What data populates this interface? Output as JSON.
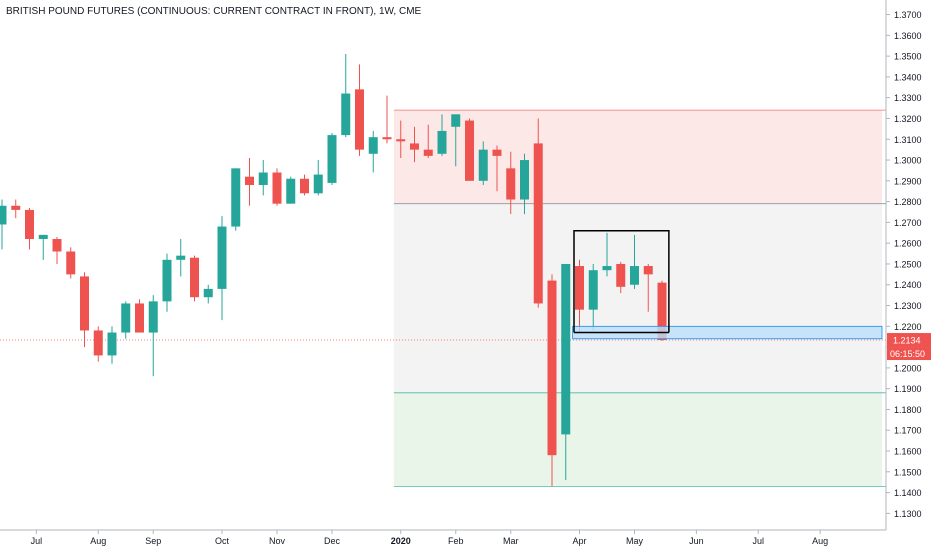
{
  "colors": {
    "up": "#26a69a",
    "down": "#ef5350",
    "axis_text": "#131722",
    "axis_line": "#b2b5be",
    "price_badge": "#ef5350",
    "price_line": "#ef5350",
    "short_zone": "#fde8e8",
    "long_zone": "#eaf5ea",
    "middle_zone": "#f3f3f3",
    "highlight_zone": "#bbdefb",
    "highlight_border": "#1e88e5",
    "box_line": "#000000"
  },
  "chart_data": {
    "type": "candlestick",
    "title": "BRITISH POUND FUTURES (CONTINUOUS: CURRENT CONTRACT IN FRONT), 1W, CME",
    "xlabel": "",
    "ylabel": "",
    "ylim": [
      1.122,
      1.377
    ],
    "y_ticks": [
      "1.3700",
      "1.3600",
      "1.3500",
      "1.3400",
      "1.3300",
      "1.3200",
      "1.3100",
      "1.3000",
      "1.2900",
      "1.2800",
      "1.2700",
      "1.2600",
      "1.2500",
      "1.2400",
      "1.2300",
      "1.2200",
      "1.2100",
      "1.2000",
      "1.1900",
      "1.1800",
      "1.1700",
      "1.1600",
      "1.1500",
      "1.1400",
      "1.1300"
    ],
    "x_ticks": [
      {
        "label": "Jul",
        "week": 2.5
      },
      {
        "label": "Aug",
        "week": 7
      },
      {
        "label": "Sep",
        "week": 11
      },
      {
        "label": "Oct",
        "week": 16
      },
      {
        "label": "Nov",
        "week": 20
      },
      {
        "label": "Dec",
        "week": 24
      },
      {
        "label": "2020",
        "week": 29
      },
      {
        "label": "Feb",
        "week": 33
      },
      {
        "label": "Mar",
        "week": 37
      },
      {
        "label": "Apr",
        "week": 42
      },
      {
        "label": "May",
        "week": 46
      },
      {
        "label": "Jun",
        "week": 50.5
      },
      {
        "label": "Jul",
        "week": 55
      },
      {
        "label": "Aug",
        "week": 59.5
      }
    ],
    "last_price": "1.2134",
    "countdown": "06:15:50",
    "candles": [
      {
        "o": 1.269,
        "h": 1.281,
        "l": 1.257,
        "c": 1.278
      },
      {
        "o": 1.278,
        "h": 1.281,
        "l": 1.272,
        "c": 1.276
      },
      {
        "o": 1.276,
        "h": 1.277,
        "l": 1.257,
        "c": 1.262
      },
      {
        "o": 1.262,
        "h": 1.264,
        "l": 1.252,
        "c": 1.264
      },
      {
        "o": 1.262,
        "h": 1.263,
        "l": 1.25,
        "c": 1.256
      },
      {
        "o": 1.256,
        "h": 1.258,
        "l": 1.243,
        "c": 1.245
      },
      {
        "o": 1.244,
        "h": 1.246,
        "l": 1.21,
        "c": 1.218
      },
      {
        "o": 1.218,
        "h": 1.22,
        "l": 1.203,
        "c": 1.206
      },
      {
        "o": 1.206,
        "h": 1.22,
        "l": 1.202,
        "c": 1.217
      },
      {
        "o": 1.217,
        "h": 1.232,
        "l": 1.214,
        "c": 1.231
      },
      {
        "o": 1.231,
        "h": 1.233,
        "l": 1.218,
        "c": 1.217
      },
      {
        "o": 1.217,
        "h": 1.235,
        "l": 1.196,
        "c": 1.232
      },
      {
        "o": 1.232,
        "h": 1.255,
        "l": 1.227,
        "c": 1.252
      },
      {
        "o": 1.252,
        "h": 1.262,
        "l": 1.244,
        "c": 1.254
      },
      {
        "o": 1.253,
        "h": 1.254,
        "l": 1.232,
        "c": 1.234
      },
      {
        "o": 1.234,
        "h": 1.24,
        "l": 1.231,
        "c": 1.238
      },
      {
        "o": 1.238,
        "h": 1.273,
        "l": 1.223,
        "c": 1.268
      },
      {
        "o": 1.268,
        "h": 1.296,
        "l": 1.266,
        "c": 1.296
      },
      {
        "o": 1.292,
        "h": 1.301,
        "l": 1.278,
        "c": 1.288
      },
      {
        "o": 1.288,
        "h": 1.3,
        "l": 1.283,
        "c": 1.294
      },
      {
        "o": 1.294,
        "h": 1.296,
        "l": 1.278,
        "c": 1.279
      },
      {
        "o": 1.279,
        "h": 1.292,
        "l": 1.279,
        "c": 1.291
      },
      {
        "o": 1.291,
        "h": 1.293,
        "l": 1.283,
        "c": 1.284
      },
      {
        "o": 1.284,
        "h": 1.3,
        "l": 1.283,
        "c": 1.293
      },
      {
        "o": 1.289,
        "h": 1.313,
        "l": 1.288,
        "c": 1.312
      },
      {
        "o": 1.312,
        "h": 1.351,
        "l": 1.311,
        "c": 1.332
      },
      {
        "o": 1.334,
        "h": 1.346,
        "l": 1.302,
        "c": 1.305
      },
      {
        "o": 1.303,
        "h": 1.314,
        "l": 1.294,
        "c": 1.311
      },
      {
        "o": 1.311,
        "h": 1.331,
        "l": 1.308,
        "c": 1.31
      },
      {
        "o": 1.31,
        "h": 1.319,
        "l": 1.301,
        "c": 1.309
      },
      {
        "o": 1.308,
        "h": 1.316,
        "l": 1.299,
        "c": 1.305
      },
      {
        "o": 1.305,
        "h": 1.317,
        "l": 1.301,
        "c": 1.302
      },
      {
        "o": 1.303,
        "h": 1.322,
        "l": 1.302,
        "c": 1.314
      },
      {
        "o": 1.316,
        "h": 1.322,
        "l": 1.297,
        "c": 1.322
      },
      {
        "o": 1.319,
        "h": 1.32,
        "l": 1.29,
        "c": 1.29
      },
      {
        "o": 1.29,
        "h": 1.309,
        "l": 1.288,
        "c": 1.305
      },
      {
        "o": 1.305,
        "h": 1.307,
        "l": 1.285,
        "c": 1.302
      },
      {
        "o": 1.296,
        "h": 1.304,
        "l": 1.274,
        "c": 1.281
      },
      {
        "o": 1.281,
        "h": 1.303,
        "l": 1.274,
        "c": 1.3
      },
      {
        "o": 1.308,
        "h": 1.32,
        "l": 1.229,
        "c": 1.231
      },
      {
        "o": 1.242,
        "h": 1.245,
        "l": 1.143,
        "c": 1.158
      },
      {
        "o": 1.168,
        "h": 1.25,
        "l": 1.146,
        "c": 1.25
      },
      {
        "o": 1.249,
        "h": 1.252,
        "l": 1.217,
        "c": 1.228
      },
      {
        "o": 1.228,
        "h": 1.25,
        "l": 1.218,
        "c": 1.247
      },
      {
        "o": 1.247,
        "h": 1.265,
        "l": 1.244,
        "c": 1.249
      },
      {
        "o": 1.25,
        "h": 1.251,
        "l": 1.236,
        "c": 1.239
      },
      {
        "o": 1.24,
        "h": 1.264,
        "l": 1.238,
        "c": 1.249
      },
      {
        "o": 1.249,
        "h": 1.25,
        "l": 1.227,
        "c": 1.245
      },
      {
        "o": 1.241,
        "h": 1.242,
        "l": 1.213,
        "c": 1.2134
      }
    ],
    "annotations": [
      {
        "type": "short-zone",
        "from_week": 28.5,
        "to_week": 64,
        "y1": 1.324,
        "y2": 1.279
      },
      {
        "type": "middle-zone",
        "from_week": 28.5,
        "to_week": 64,
        "y1": 1.279,
        "y2": 1.188
      },
      {
        "type": "long-zone",
        "from_week": 28.5,
        "to_week": 64,
        "y1": 1.188,
        "y2": 1.143
      },
      {
        "type": "highlight-zone",
        "from_week": 41.5,
        "to_week": 64,
        "y1": 1.22,
        "y2": 1.214
      },
      {
        "type": "box",
        "from_week": 41.6,
        "to_week": 48.5,
        "top": 1.266,
        "bottom": 1.217
      }
    ]
  }
}
